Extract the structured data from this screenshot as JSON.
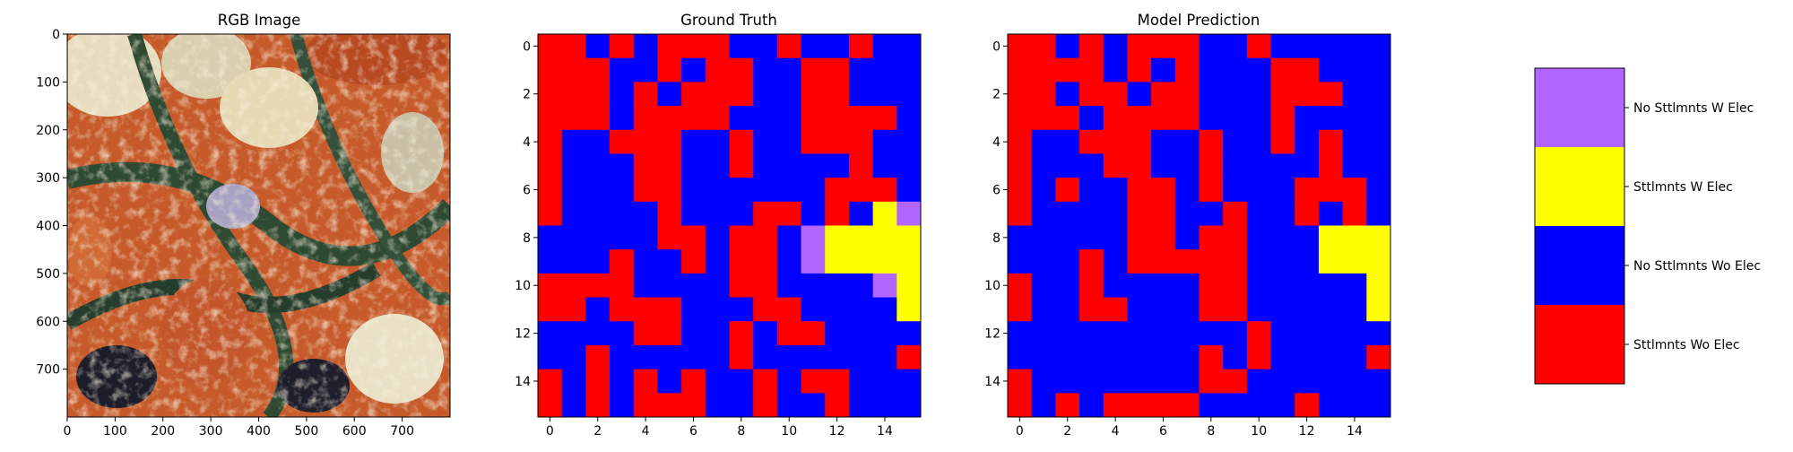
{
  "figure": {
    "panel1_title": "RGB Image",
    "panel2_title": "Ground Truth",
    "panel3_title": "Model Prediction"
  },
  "rgb_panel": {
    "x_ticks": [
      0,
      100,
      200,
      300,
      400,
      500,
      600,
      700
    ],
    "y_ticks": [
      0,
      100,
      200,
      300,
      400,
      500,
      600,
      700
    ],
    "extent": [
      0,
      800
    ],
    "description_colors": [
      "#c65a2a",
      "#e6d8b4",
      "#2f4a32",
      "#1d1d2a",
      "#a7a2c2"
    ]
  },
  "chart_data": [
    {
      "type": "heatmap",
      "title": "Ground Truth",
      "x_ticks": [
        0,
        2,
        4,
        6,
        8,
        10,
        12,
        14
      ],
      "y_ticks": [
        0,
        2,
        4,
        6,
        8,
        10,
        12,
        14
      ],
      "xlim": [
        -0.5,
        15.5
      ],
      "ylim": [
        15.5,
        -0.5
      ],
      "classes": [
        0,
        1,
        2,
        3
      ],
      "grid": [
        [
          0,
          0,
          1,
          0,
          1,
          0,
          0,
          0,
          1,
          1,
          0,
          1,
          1,
          0,
          1,
          1
        ],
        [
          0,
          0,
          0,
          1,
          1,
          0,
          1,
          0,
          0,
          1,
          1,
          0,
          0,
          1,
          1,
          1
        ],
        [
          0,
          0,
          0,
          1,
          0,
          1,
          0,
          0,
          0,
          1,
          1,
          0,
          0,
          1,
          1,
          1
        ],
        [
          0,
          0,
          0,
          1,
          0,
          0,
          0,
          0,
          1,
          1,
          1,
          0,
          0,
          0,
          0,
          1
        ],
        [
          0,
          1,
          1,
          0,
          0,
          0,
          1,
          1,
          0,
          1,
          1,
          0,
          0,
          0,
          1,
          1
        ],
        [
          0,
          1,
          1,
          1,
          0,
          0,
          1,
          1,
          0,
          1,
          1,
          1,
          1,
          0,
          1,
          1
        ],
        [
          0,
          1,
          1,
          1,
          0,
          0,
          1,
          1,
          1,
          1,
          1,
          1,
          0,
          0,
          0,
          1
        ],
        [
          0,
          1,
          1,
          1,
          1,
          0,
          1,
          1,
          1,
          0,
          0,
          1,
          0,
          1,
          2,
          3
        ],
        [
          1,
          1,
          1,
          1,
          1,
          0,
          0,
          1,
          0,
          0,
          1,
          3,
          2,
          2,
          2,
          2
        ],
        [
          1,
          1,
          1,
          0,
          1,
          1,
          0,
          1,
          0,
          0,
          1,
          3,
          2,
          2,
          2,
          2
        ],
        [
          0,
          0,
          0,
          0,
          1,
          1,
          1,
          1,
          0,
          0,
          1,
          1,
          1,
          1,
          3,
          2
        ],
        [
          0,
          0,
          1,
          0,
          0,
          0,
          1,
          1,
          1,
          0,
          0,
          1,
          1,
          1,
          1,
          2
        ],
        [
          1,
          1,
          1,
          1,
          0,
          0,
          1,
          1,
          0,
          1,
          0,
          0,
          1,
          1,
          1,
          1
        ],
        [
          1,
          1,
          0,
          1,
          1,
          1,
          1,
          1,
          0,
          1,
          1,
          1,
          1,
          1,
          1,
          0
        ],
        [
          0,
          1,
          0,
          1,
          0,
          1,
          0,
          1,
          1,
          0,
          1,
          0,
          0,
          1,
          1,
          1
        ],
        [
          0,
          1,
          0,
          1,
          0,
          0,
          0,
          1,
          1,
          0,
          1,
          1,
          0,
          1,
          1,
          1
        ]
      ]
    },
    {
      "type": "heatmap",
      "title": "Model Prediction",
      "x_ticks": [
        0,
        2,
        4,
        6,
        8,
        10,
        12,
        14
      ],
      "y_ticks": [
        0,
        2,
        4,
        6,
        8,
        10,
        12,
        14
      ],
      "xlim": [
        -0.5,
        15.5
      ],
      "ylim": [
        15.5,
        -0.5
      ],
      "classes": [
        0,
        1,
        2,
        3
      ],
      "grid": [
        [
          0,
          0,
          1,
          0,
          1,
          0,
          0,
          0,
          1,
          1,
          0,
          1,
          1,
          1,
          1,
          1
        ],
        [
          0,
          0,
          0,
          0,
          1,
          0,
          1,
          0,
          1,
          1,
          1,
          0,
          0,
          1,
          1,
          1
        ],
        [
          0,
          0,
          1,
          0,
          0,
          1,
          0,
          0,
          1,
          1,
          1,
          0,
          0,
          0,
          1,
          1
        ],
        [
          0,
          0,
          0,
          1,
          0,
          0,
          0,
          0,
          1,
          1,
          1,
          0,
          1,
          1,
          1,
          1
        ],
        [
          0,
          1,
          1,
          0,
          0,
          0,
          1,
          1,
          0,
          1,
          1,
          0,
          1,
          0,
          1,
          1
        ],
        [
          0,
          1,
          1,
          1,
          0,
          0,
          1,
          1,
          0,
          1,
          1,
          1,
          1,
          0,
          1,
          1
        ],
        [
          0,
          1,
          0,
          1,
          1,
          0,
          0,
          1,
          0,
          1,
          1,
          1,
          0,
          0,
          0,
          1
        ],
        [
          0,
          1,
          1,
          1,
          1,
          0,
          0,
          1,
          1,
          0,
          1,
          1,
          0,
          1,
          0,
          1
        ],
        [
          1,
          1,
          1,
          1,
          1,
          0,
          0,
          1,
          0,
          0,
          1,
          1,
          1,
          2,
          2,
          2
        ],
        [
          1,
          1,
          1,
          0,
          1,
          0,
          0,
          0,
          0,
          0,
          1,
          1,
          1,
          2,
          2,
          2
        ],
        [
          0,
          1,
          1,
          0,
          1,
          1,
          1,
          1,
          0,
          0,
          1,
          1,
          1,
          1,
          1,
          2
        ],
        [
          0,
          1,
          1,
          0,
          0,
          1,
          1,
          1,
          0,
          0,
          1,
          1,
          1,
          1,
          1,
          2
        ],
        [
          1,
          1,
          1,
          1,
          1,
          1,
          1,
          1,
          1,
          1,
          0,
          1,
          1,
          1,
          1,
          1
        ],
        [
          1,
          1,
          1,
          1,
          1,
          1,
          1,
          1,
          0,
          1,
          0,
          1,
          1,
          1,
          1,
          0
        ],
        [
          0,
          1,
          1,
          1,
          1,
          1,
          1,
          1,
          0,
          0,
          1,
          1,
          1,
          1,
          1,
          1
        ],
        [
          0,
          1,
          0,
          1,
          0,
          0,
          0,
          0,
          1,
          1,
          1,
          1,
          0,
          1,
          1,
          1
        ]
      ]
    }
  ],
  "legend": {
    "items": [
      {
        "label": "No Sttlmnts W Elec",
        "color": "#b366ff"
      },
      {
        "label": "Sttlmnts W Elec",
        "color": "#ffff00"
      },
      {
        "label": "No Sttlmnts Wo Elec",
        "color": "#0000ff"
      },
      {
        "label": "Sttlmnts Wo Elec",
        "color": "#ff0000"
      }
    ]
  },
  "class_colors": {
    "0": "#ff0000",
    "1": "#0000ff",
    "2": "#ffff00",
    "3": "#b366ff"
  }
}
